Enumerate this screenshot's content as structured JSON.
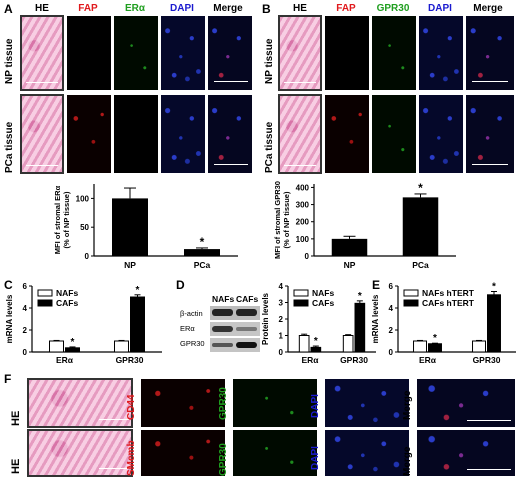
{
  "panel_letters": {
    "A": "A",
    "B": "B",
    "C": "C",
    "D": "D",
    "E": "E",
    "F": "F"
  },
  "colors": {
    "red": "#e0191c",
    "green": "#1f9e1f",
    "blue": "#1a1acf"
  },
  "panelA": {
    "headers": [
      "HE",
      "FAP",
      "ERα",
      "DAPI",
      "Merge"
    ],
    "rows": [
      "NP tissue",
      "PCa tissue"
    ]
  },
  "panelB": {
    "headers": [
      "HE",
      "FAP",
      "GPR30",
      "DAPI",
      "Merge"
    ],
    "rows": [
      "NP tissue",
      "PCa tissue"
    ]
  },
  "panelF": {
    "row1": {
      "he": "HE",
      "stain": "CD44",
      "green": "GPR30",
      "dapi": "DAPI",
      "merge": "Merge"
    },
    "row2": {
      "he": "HE",
      "stain": "SMemb",
      "green": "GPR30",
      "dapi": "DAPI",
      "merge": "Merge"
    }
  },
  "chart_data": [
    {
      "id": "A",
      "type": "bar",
      "categories": [
        "NP",
        "PCa"
      ],
      "values": [
        100,
        12
      ],
      "errors": [
        18,
        2
      ],
      "ylabel": "MFI of stromal ERα (% of NP tissue)",
      "ylim": [
        0,
        125
      ],
      "yticks": [
        0,
        50,
        100
      ],
      "significance": [
        "",
        "*"
      ]
    },
    {
      "id": "B",
      "type": "bar",
      "categories": [
        "NP",
        "PCa"
      ],
      "values": [
        100,
        342
      ],
      "errors": [
        15,
        20
      ],
      "ylabel": "MFI of stromal GPR30 (% of NP tissue)",
      "ylim": [
        0,
        420
      ],
      "yticks": [
        0,
        100,
        200,
        300,
        400
      ],
      "significance": [
        "",
        "*"
      ]
    },
    {
      "id": "C",
      "type": "bar",
      "categories": [
        "ERα",
        "GPR30"
      ],
      "series": [
        {
          "name": "NAFs",
          "values": [
            1.0,
            1.0
          ]
        },
        {
          "name": "CAFs",
          "values": [
            0.38,
            5.0
          ]
        }
      ],
      "errors": [
        [
          0.05,
          0.08
        ],
        [
          0.05,
          0.2
        ]
      ],
      "ylabel": "mRNA levels",
      "ylim": [
        0,
        6
      ],
      "yticks": [
        0,
        2,
        4,
        6
      ],
      "significance": [
        "*",
        "*"
      ],
      "legend": "top-left"
    },
    {
      "id": "D",
      "type": "bar",
      "categories": [
        "ERα",
        "GPR30"
      ],
      "series": [
        {
          "name": "NAFs",
          "values": [
            1.0,
            1.0
          ]
        },
        {
          "name": "CAFs",
          "values": [
            0.28,
            2.95
          ]
        }
      ],
      "errors": [
        [
          0.08,
          0.08
        ],
        [
          0.05,
          0.15
        ]
      ],
      "ylabel": "Protein levels",
      "ylim": [
        0,
        4
      ],
      "yticks": [
        0,
        1,
        2,
        3,
        4
      ],
      "significance": [
        "*",
        "*"
      ],
      "legend": "top-left",
      "blot": {
        "columns": [
          "NAFs",
          "CAFs"
        ],
        "rows": [
          "β-actin",
          "ERα",
          "GPR30"
        ]
      }
    },
    {
      "id": "E",
      "type": "bar",
      "categories": [
        "ERα",
        "GPR30"
      ],
      "series": [
        {
          "name": "NAFs hTERT",
          "values": [
            1.0,
            1.0
          ]
        },
        {
          "name": "CAFs hTERT",
          "values": [
            0.75,
            5.2
          ]
        }
      ],
      "errors": [
        [
          0.05,
          0.05
        ],
        [
          0.05,
          0.3
        ]
      ],
      "ylabel": "mRNA levels",
      "ylim": [
        0,
        6
      ],
      "yticks": [
        0,
        2,
        4,
        6
      ],
      "significance": [
        "*",
        "*"
      ],
      "legend": "top-left"
    }
  ]
}
